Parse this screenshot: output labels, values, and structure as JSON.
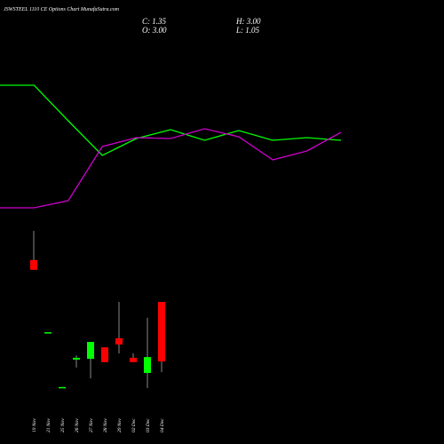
{
  "chart_data": [
    {
      "type": "candlestick",
      "title": "JSWSTEEL 1110 CE Options Chart MunafaSutra.com",
      "close_label": "C: 1.35",
      "high_label": "H: 3.00",
      "open_label": "O: 3.00",
      "low_label": "L: 1.05",
      "x": [
        "19 Nov",
        "21 Nov",
        "25 Nov",
        "26 Nov",
        "27 Nov",
        "28 Nov",
        "29 Nov",
        "02 Dec",
        "03 Dec",
        "04 Dec"
      ],
      "open": [
        4.16,
        2.16,
        0.64,
        1.4,
        1.42,
        1.74,
        1.99,
        1.45,
        1.03,
        3.0
      ],
      "high": [
        4.97,
        2.16,
        0.64,
        1.52,
        1.89,
        1.74,
        3.0,
        1.57,
        2.56,
        3.0
      ],
      "low": [
        3.89,
        2.16,
        0.64,
        1.18,
        0.88,
        1.33,
        1.57,
        1.33,
        0.61,
        1.05
      ],
      "close": [
        3.89,
        2.16,
        0.64,
        1.45,
        1.89,
        1.33,
        1.82,
        1.33,
        1.47,
        1.35
      ],
      "up_color": "#00ff00",
      "down_color": "#ff0000",
      "ylim": [
        -0.94,
        11.37
      ]
    },
    {
      "type": "line",
      "x": [
        0,
        1,
        2,
        3,
        4,
        5,
        6,
        7,
        8,
        9,
        10
      ],
      "xlim": [
        0,
        10
      ],
      "ylim": [
        0,
        100
      ],
      "series": [
        {
          "color": "#00ff00",
          "values": [
            80.8,
            80.8,
            72.8,
            65,
            68.8,
            70.8,
            68.4,
            70.6,
            68.4,
            69,
            68.4
          ]
        },
        {
          "color": "#cc00cc",
          "values": [
            53.2,
            53.2,
            54.8,
            67,
            69,
            68.8,
            71,
            69.2,
            64,
            66,
            70.2
          ]
        }
      ]
    }
  ]
}
